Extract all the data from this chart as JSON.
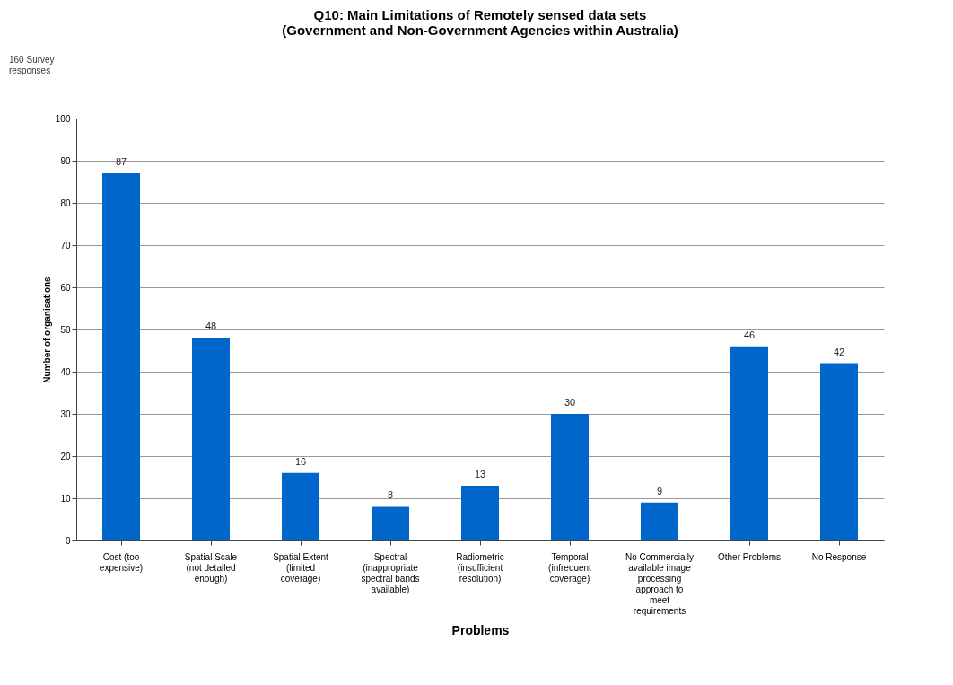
{
  "chart_data": {
    "type": "bar",
    "title": [
      "Q10: Main Limitations of Remotely sensed data sets",
      "(Government and Non-Government Agencies within Australia)"
    ],
    "xlabel": "Problems",
    "ylabel": "Number of organisations",
    "categories": [
      "Cost (too expensive)",
      "Spatial Scale (not detailed enough)",
      "Spatial Extent (limited coverage)",
      "Spectral (inappropriate spectral bands available)",
      "Radiometric (insufficient resolution)",
      "Temporal (infrequent coverage)",
      "No Commercially available image processing approach to meet requirements",
      "Other Problems",
      "No Response"
    ],
    "values": [
      87,
      48,
      16,
      8,
      13,
      30,
      9,
      46,
      42
    ],
    "color": "#0066cc",
    "ylim": [
      0,
      100
    ],
    "yticks": [
      0,
      10,
      20,
      30,
      40,
      50,
      60,
      70,
      80,
      90,
      100
    ],
    "grid": "y",
    "data_labels": true,
    "annotations": [
      "160 Survey responses"
    ]
  }
}
